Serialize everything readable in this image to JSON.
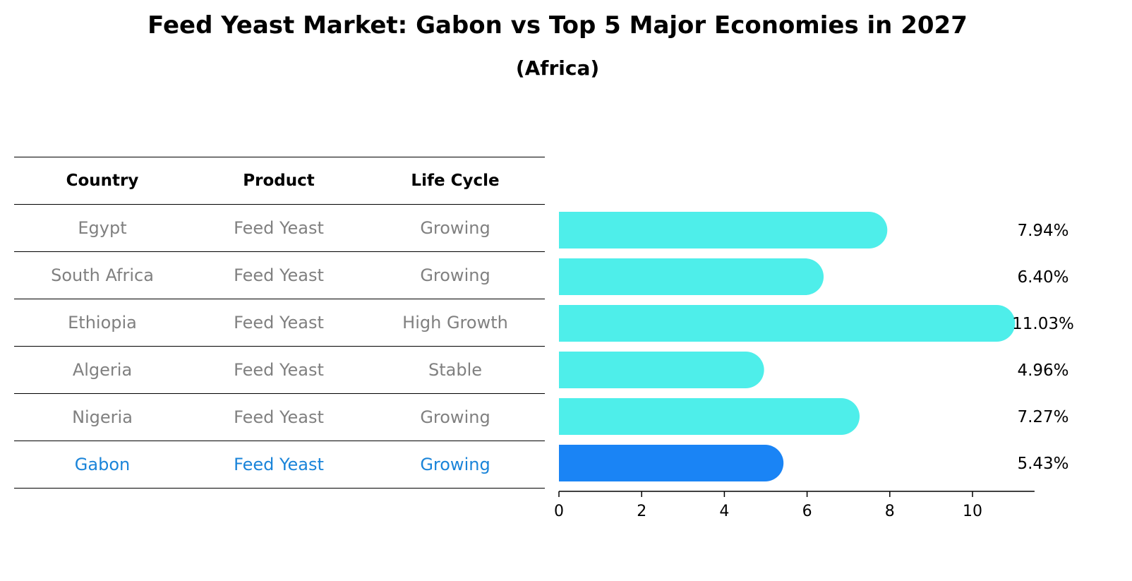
{
  "title": "Feed Yeast Market: Gabon vs Top 5 Major Economies in 2027",
  "subtitle": "(Africa)",
  "table": {
    "headers": [
      "Country",
      "Product",
      "Life Cycle"
    ],
    "rows": [
      [
        "Egypt",
        "Feed Yeast",
        "Growing"
      ],
      [
        "South Africa",
        "Feed Yeast",
        "Growing"
      ],
      [
        "Ethiopia",
        "Feed Yeast",
        "High Growth"
      ],
      [
        "Algeria",
        "Feed Yeast",
        "Stable"
      ],
      [
        "Nigeria",
        "Feed Yeast",
        "Growing"
      ],
      [
        "Gabon",
        "Feed Yeast",
        "Growing"
      ]
    ],
    "highlight_row": 5
  },
  "colors": {
    "bar": "#4eeeea",
    "highlight_bar": "#1a84f5",
    "highlight_text": "#1a84d9"
  },
  "chart_data": {
    "type": "bar",
    "orientation": "horizontal",
    "categories": [
      "Egypt",
      "South Africa",
      "Ethiopia",
      "Algeria",
      "Nigeria",
      "Gabon"
    ],
    "values": [
      7.94,
      6.4,
      11.03,
      4.96,
      7.27,
      5.43
    ],
    "value_labels": [
      "7.94%",
      "6.40%",
      "11.03%",
      "4.96%",
      "7.27%",
      "5.43%"
    ],
    "xlim": [
      0,
      11.5
    ],
    "xticks": [
      0,
      2,
      4,
      6,
      8,
      10
    ],
    "xtick_labels": [
      "0",
      "2",
      "4",
      "6",
      "8",
      "10"
    ],
    "highlight_index": 5
  }
}
